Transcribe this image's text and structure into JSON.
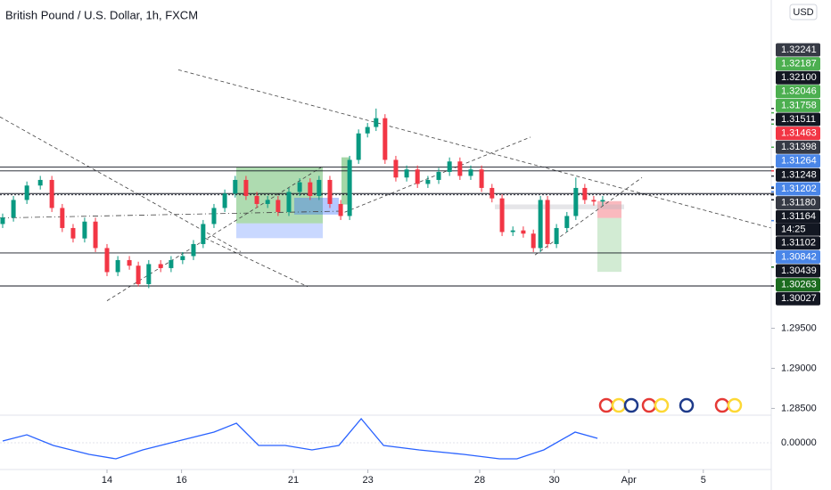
{
  "chart_data": {
    "type": "candlestick",
    "title": "British Pound / U.S. Dollar, 1h, FXCM",
    "currency": "USD",
    "countdown": "14:25",
    "up_color": "#089981",
    "down_color": "#f23645",
    "x": [
      -2.8,
      -2.51,
      -2.15,
      -1.79,
      -1.48,
      -1.2,
      -0.91,
      -0.6,
      -0.31,
      0,
      0.29,
      0.6,
      0.84,
      1.12,
      1.44,
      1.72,
      2.03,
      2.32,
      2.58,
      2.87,
      3.16,
      3.44,
      3.73,
      4.02,
      4.31,
      4.59,
      4.88,
      5.17,
      5.45,
      5.69,
      5.98,
      6.27,
      6.51,
      6.75,
      6.99,
      7.22,
      7.46,
      7.75,
      8.04,
      8.33,
      8.61,
      8.9,
      9.19,
      9.47,
      9.76,
      10.05,
      10.33,
      10.6,
      10.89,
      11.17,
      11.44,
      11.63,
      11.82,
      12.06,
      12.34,
      12.58,
      12.82,
      13.06,
      13.3
    ],
    "open": [
      1.308,
      1.3088,
      1.311,
      1.3128,
      1.3135,
      1.31,
      1.3075,
      1.3062,
      1.3083,
      1.305,
      1.302,
      1.3035,
      1.3028,
      1.3005,
      1.303,
      1.3025,
      1.3035,
      1.304,
      1.3055,
      1.308,
      1.31,
      1.3118,
      1.3135,
      1.3115,
      1.3105,
      1.311,
      1.3095,
      1.312,
      1.3132,
      1.3115,
      1.3135,
      1.3105,
      1.309,
      1.316,
      1.3193,
      1.3201,
      1.3212,
      1.316,
      1.3138,
      1.3148,
      1.313,
      1.3135,
      1.3145,
      1.3158,
      1.314,
      1.3148,
      1.3125,
      1.3112,
      1.307,
      1.3072,
      1.3068,
      1.305,
      1.311,
      1.3055,
      1.3075,
      1.309,
      1.3125,
      1.311,
      1.3108
    ],
    "high": [
      1.3093,
      1.3115,
      1.3133,
      1.314,
      1.314,
      1.3105,
      1.308,
      1.3088,
      1.3088,
      1.3055,
      1.304,
      1.304,
      1.3033,
      1.3035,
      1.3035,
      1.304,
      1.3045,
      1.306,
      1.3085,
      1.3105,
      1.3123,
      1.314,
      1.314,
      1.312,
      1.3115,
      1.3115,
      1.3125,
      1.3137,
      1.3137,
      1.314,
      1.314,
      1.311,
      1.3165,
      1.3198,
      1.3206,
      1.3224,
      1.3217,
      1.3165,
      1.3153,
      1.3153,
      1.314,
      1.315,
      1.3163,
      1.3163,
      1.3153,
      1.3153,
      1.313,
      1.3117,
      1.3077,
      1.3077,
      1.3073,
      1.3115,
      1.3115,
      1.308,
      1.3095,
      1.3138,
      1.313,
      1.3115,
      1.3115
    ],
    "low": [
      1.3075,
      1.3083,
      1.3105,
      1.3123,
      1.3095,
      1.307,
      1.3057,
      1.3057,
      1.3045,
      1.3015,
      1.3015,
      1.3023,
      1.3002,
      1.3,
      1.302,
      1.302,
      1.303,
      1.3035,
      1.305,
      1.3075,
      1.3095,
      1.3113,
      1.311,
      1.31,
      1.31,
      1.309,
      1.309,
      1.3115,
      1.311,
      1.311,
      1.31,
      1.3085,
      1.3085,
      1.3155,
      1.3188,
      1.3196,
      1.3155,
      1.3133,
      1.3133,
      1.3125,
      1.3125,
      1.313,
      1.314,
      1.3135,
      1.3135,
      1.312,
      1.3107,
      1.3065,
      1.3065,
      1.3063,
      1.3045,
      1.3045,
      1.305,
      1.305,
      1.307,
      1.3085,
      1.3105,
      1.3103,
      1.3103
    ],
    "close": [
      1.3088,
      1.311,
      1.3128,
      1.3135,
      1.31,
      1.3075,
      1.3062,
      1.3083,
      1.305,
      1.302,
      1.3035,
      1.3028,
      1.3005,
      1.303,
      1.3025,
      1.3035,
      1.304,
      1.3055,
      1.308,
      1.31,
      1.3118,
      1.3135,
      1.3115,
      1.3105,
      1.311,
      1.3095,
      1.312,
      1.3132,
      1.3115,
      1.3135,
      1.3105,
      1.309,
      1.316,
      1.3193,
      1.3201,
      1.3212,
      1.316,
      1.3138,
      1.3148,
      1.313,
      1.3135,
      1.3145,
      1.3158,
      1.314,
      1.3148,
      1.3125,
      1.3112,
      1.307,
      1.3072,
      1.3068,
      1.305,
      1.311,
      1.3055,
      1.3075,
      1.309,
      1.3125,
      1.311,
      1.3108,
      1.311
    ],
    "xlim": [
      -2.871,
      17.823
    ],
    "xticks": [
      {
        "value": 0,
        "label": "14"
      },
      {
        "value": 2,
        "label": "16"
      },
      {
        "value": 5,
        "label": "21"
      },
      {
        "value": 7,
        "label": "23"
      },
      {
        "value": 10,
        "label": "28"
      },
      {
        "value": 12,
        "label": "30"
      },
      {
        "value": 14,
        "label": "Apr"
      },
      {
        "value": 16,
        "label": "5"
      }
    ],
    "ylim": [
      1.28427,
      1.33594
    ],
    "yticks": [
      {
        "value": 1.295,
        "label": "1.29500"
      },
      {
        "value": 1.29,
        "label": "1.29000"
      },
      {
        "value": 1.285,
        "label": "1.28500"
      }
    ],
    "levels": [
      1.31511,
      1.31463,
      1.3118,
      1.31164,
      1.30439,
      1.30027
    ],
    "price_tags": [
      {
        "value": 1.32241,
        "label": "1.32241",
        "color": "#363a45"
      },
      {
        "value": 1.32187,
        "label": "1.32187",
        "color": "#4caf50"
      },
      {
        "value": 1.321,
        "label": "1.32100",
        "color": "#131722"
      },
      {
        "value": 1.32046,
        "label": "1.32046",
        "color": "#4caf50"
      },
      {
        "value": 1.31758,
        "label": "1.31758",
        "color": "#4caf50"
      },
      {
        "value": 1.31511,
        "label": "1.31511",
        "color": "#131722"
      },
      {
        "value": 1.31463,
        "label": "1.31463",
        "color": "#f23645"
      },
      {
        "value": 1.31398,
        "label": "1.31398",
        "color": "#363a45"
      },
      {
        "value": 1.31264,
        "label": "1.31264",
        "color": "#4a86e8"
      },
      {
        "value": 1.31248,
        "label": "1.31248",
        "color": "#131722"
      },
      {
        "value": 1.31202,
        "label": "1.31202",
        "color": "#4a86e8"
      },
      {
        "value": 1.3118,
        "label": "1.31180",
        "color": "#363a45"
      },
      {
        "value": 1.31164,
        "label": "1.31164",
        "color": "#131722"
      },
      {
        "value": 1.31102,
        "label": "1.31102",
        "color": "#131722"
      },
      {
        "value": 1.30842,
        "label": "1.30842",
        "color": "#4a86e8"
      },
      {
        "value": 1.30439,
        "label": "1.30439",
        "color": "#131722"
      },
      {
        "value": 1.30263,
        "label": "1.30263",
        "color": "#1b6b1f"
      },
      {
        "value": 1.30027,
        "label": "1.30027",
        "color": "#131722"
      }
    ],
    "macd": {
      "color": "#2962ff",
      "x": [
        -2.8,
        -2.15,
        -1.44,
        -0.48,
        0.24,
        0.96,
        1.91,
        2.87,
        3.47,
        4.07,
        4.78,
        5.5,
        6.22,
        6.82,
        7.42,
        8.37,
        9.57,
        10.53,
        11.0,
        11.72,
        12.56,
        13.16
      ],
      "values": [
        0.0001,
        0.00045,
        -0.00015,
        -0.00065,
        -0.0009,
        -0.0004,
        0.0001,
        0.0006,
        0.0011,
        -0.00015,
        -0.00015,
        -0.0004,
        -0.00015,
        0.00135,
        -0.00015,
        -0.0004,
        -0.00065,
        -0.0009,
        -0.0009,
        -0.0004,
        0.0006,
        0.00025
      ],
      "ylim": [
        -0.0015,
        0.0015
      ],
      "yticks": [
        {
          "value": 0,
          "label": "0.00000"
        }
      ]
    }
  }
}
